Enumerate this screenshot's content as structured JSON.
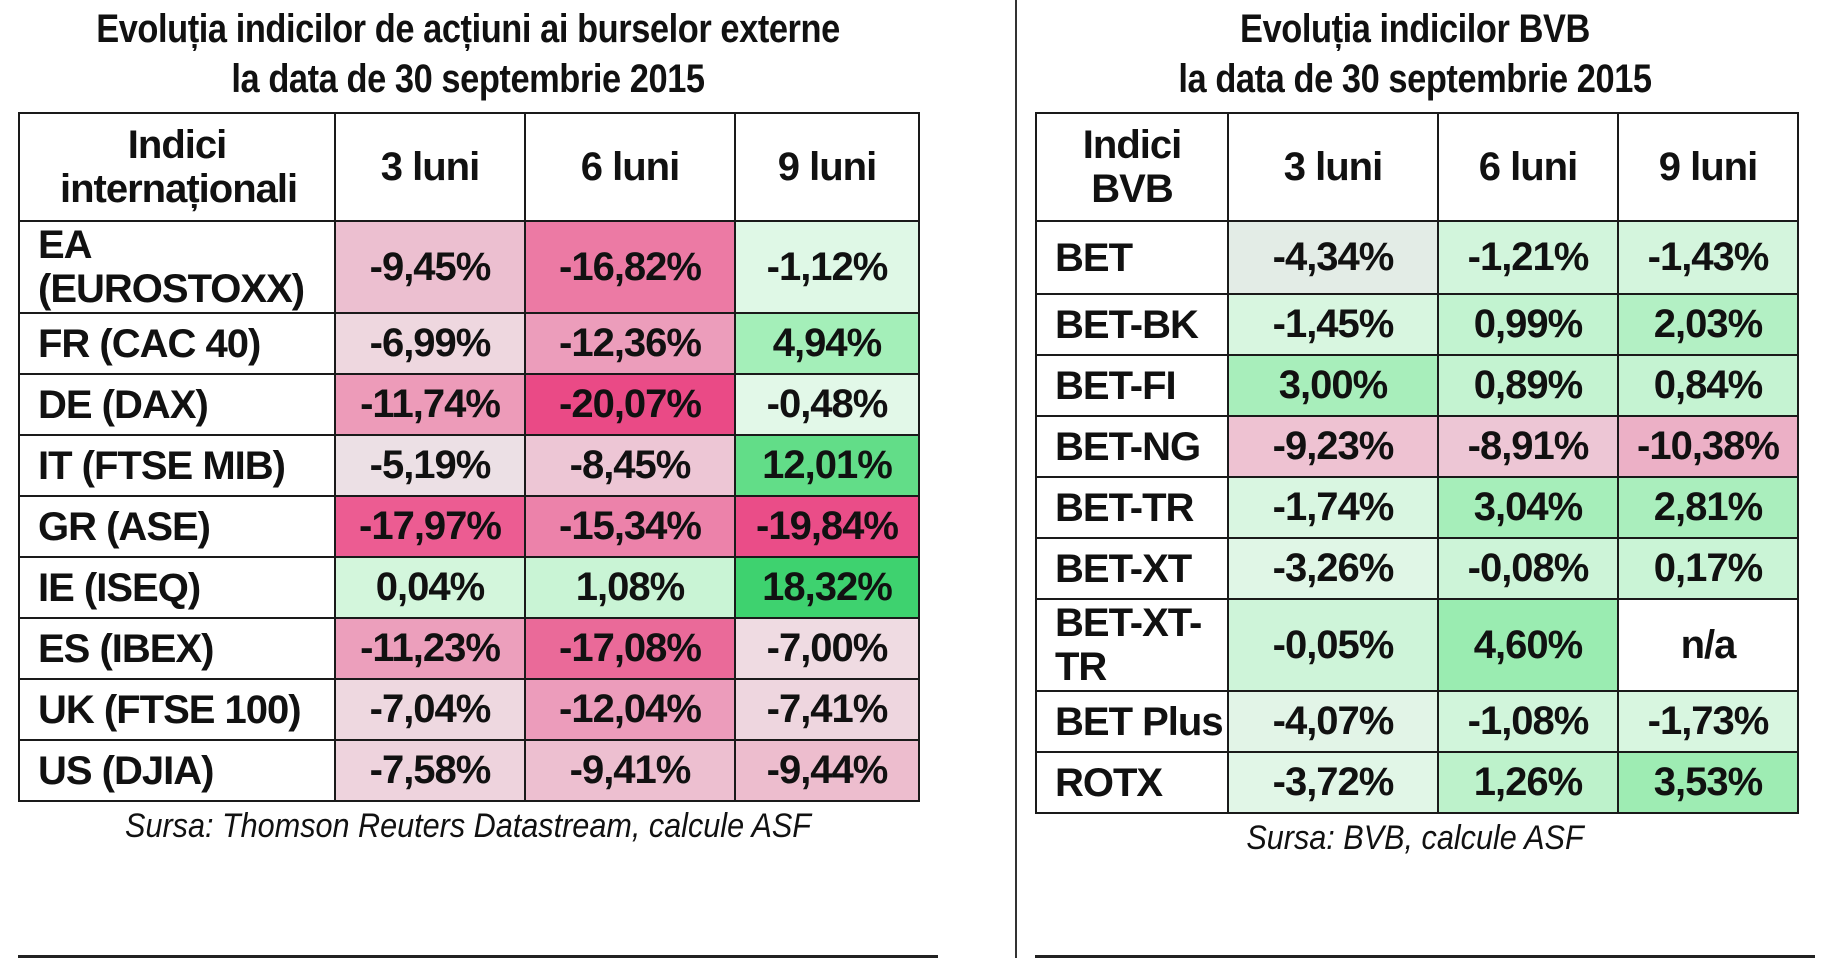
{
  "left": {
    "title_line1": "Evoluția indicilor de acțiuni ai burselor externe",
    "title_line2": "la data de 30 septembrie 2015",
    "headers": [
      "Indici internaționali",
      "3 luni",
      "6 luni",
      "9 luni"
    ],
    "rows": [
      {
        "name": "EA (EUROSTOXX)",
        "values": [
          "-9,45%",
          "-16,82%",
          "-1,12%"
        ],
        "colors": [
          "#ecbfd0",
          "#ec7aa4",
          "#dff8e6"
        ]
      },
      {
        "name": "FR (CAC 40)",
        "values": [
          "-6,99%",
          "-12,36%",
          "4,94%"
        ],
        "colors": [
          "#eed7df",
          "#ec9dbb",
          "#a4efb9"
        ]
      },
      {
        "name": "DE (DAX)",
        "values": [
          "-11,74%",
          "-20,07%",
          "-0,48%"
        ],
        "colors": [
          "#ed9bb9",
          "#ea4a86",
          "#e2f8e8"
        ]
      },
      {
        "name": "IT (FTSE MIB)",
        "values": [
          "-5,19%",
          "-8,45%",
          "12,01%"
        ],
        "colors": [
          "#ece0e5",
          "#edc6d5",
          "#62dd88"
        ]
      },
      {
        "name": "GR (ASE)",
        "values": [
          "-17,97%",
          "-15,34%",
          "-19,84%"
        ],
        "colors": [
          "#ec5c92",
          "#ec82aa",
          "#ea4d88"
        ]
      },
      {
        "name": "IE (ISEQ)",
        "values": [
          "0,04%",
          "1,08%",
          "18,32%"
        ],
        "colors": [
          "#d3f6dc",
          "#c9f4d5",
          "#3ed26f"
        ]
      },
      {
        "name": "ES (IBEX)",
        "values": [
          "-11,23%",
          "-17,08%",
          "-7,00%"
        ],
        "colors": [
          "#ec9fbc",
          "#ea6a99",
          "#efdbe2"
        ]
      },
      {
        "name": "UK (FTSE 100)",
        "values": [
          "-7,04%",
          "-12,04%",
          "-7,41%"
        ],
        "colors": [
          "#eed8e0",
          "#ec9cbb",
          "#eed6df"
        ]
      },
      {
        "name": "US (DJIA)",
        "values": [
          "-7,58%",
          "-9,41%",
          "-9,44%"
        ],
        "colors": [
          "#eed3dd",
          "#edbfd0",
          "#edbdce"
        ]
      }
    ],
    "source": "Sursa: Thomson Reuters Datastream, calcule ASF"
  },
  "right": {
    "title_line1": "Evoluția indicilor BVB",
    "title_line2": "la data de 30 septembrie 2015",
    "headers": [
      "Indici BVB",
      "3 luni",
      "6 luni",
      "9 luni"
    ],
    "rows": [
      {
        "name": "BET",
        "values": [
          "-4,34%",
          "-1,21%",
          "-1,43%"
        ],
        "colors": [
          "#e3ece6",
          "#d2f5dc",
          "#d4f5dd"
        ]
      },
      {
        "name": "BET-BK",
        "values": [
          "-1,45%",
          "0,99%",
          "2,03%"
        ],
        "colors": [
          "#d8f6e0",
          "#c2f3d0",
          "#b3f0c4"
        ]
      },
      {
        "name": "BET-FI",
        "values": [
          "3,00%",
          "0,89%",
          "0,84%"
        ],
        "colors": [
          "#a8eebb",
          "#c4f3d1",
          "#c5f3d2"
        ]
      },
      {
        "name": "BET-NG",
        "values": [
          "-9,23%",
          "-8,91%",
          "-10,38%"
        ],
        "colors": [
          "#eec2d2",
          "#edc6d5",
          "#ecb0c6"
        ]
      },
      {
        "name": "BET-TR",
        "values": [
          "-1,74%",
          "3,04%",
          "2,81%"
        ],
        "colors": [
          "#d9f6e1",
          "#a6eeba",
          "#aaeebd"
        ]
      },
      {
        "name": "BET-XT",
        "values": [
          "-3,26%",
          "-0,08%",
          "0,17%"
        ],
        "colors": [
          "#e0f6e6",
          "#cdf4d8",
          "#caf4d6"
        ]
      },
      {
        "name": "BET-XT-TR",
        "values": [
          "-0,05%",
          "4,60%",
          "n/a"
        ],
        "colors": [
          "#cef4d9",
          "#9aecb1",
          "#ffffff"
        ]
      },
      {
        "name": "BET Plus",
        "values": [
          "-4,07%",
          "-1,08%",
          "-1,73%"
        ],
        "colors": [
          "#e2f4e7",
          "#d1f5db",
          "#d8f6e0"
        ]
      },
      {
        "name": "ROTX",
        "values": [
          "-3,72%",
          "1,26%",
          "3,53%"
        ],
        "colors": [
          "#e1f6e7",
          "#bdf2cb",
          "#9eecb3"
        ]
      }
    ],
    "source": "Sursa: BVB, calcule ASF"
  }
}
